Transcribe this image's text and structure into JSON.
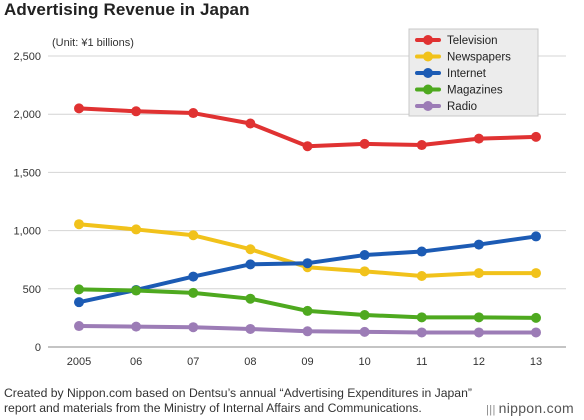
{
  "chart_data": {
    "type": "line",
    "title": "Advertising Revenue in Japan",
    "unit_note": "(Unit: ¥1 billions)",
    "x": [
      "2005",
      "06",
      "07",
      "08",
      "09",
      "10",
      "11",
      "12",
      "13"
    ],
    "ylim": [
      0,
      2500
    ],
    "yticks": [
      0,
      500,
      1000,
      1500,
      2000,
      2500
    ],
    "ytick_labels": [
      "0",
      "500",
      "1,000",
      "1,500",
      "2,000",
      "2,500"
    ],
    "grid": true,
    "legend_position": "top-right",
    "series": [
      {
        "name": "Television",
        "color": "#e03232",
        "values": [
          2050,
          2025,
          2010,
          1920,
          1725,
          1745,
          1735,
          1790,
          1805
        ]
      },
      {
        "name": "Newspapers",
        "color": "#f1c21b",
        "values": [
          1055,
          1010,
          960,
          840,
          685,
          650,
          610,
          635,
          635
        ]
      },
      {
        "name": "Internet",
        "color": "#1c5bb4",
        "values": [
          385,
          490,
          605,
          710,
          720,
          790,
          820,
          880,
          950
        ]
      },
      {
        "name": "Magazines",
        "color": "#4ea91f",
        "values": [
          495,
          485,
          465,
          415,
          310,
          275,
          255,
          255,
          250
        ]
      },
      {
        "name": "Radio",
        "color": "#9c7cb6",
        "values": [
          180,
          175,
          170,
          155,
          135,
          130,
          125,
          125,
          125
        ]
      }
    ]
  },
  "footer": {
    "caption": "Created by Nippon.com based on Dentsu’s annual “Advertising Expenditures in Japan” report and materials from the Ministry of Internal Affairs and Communications.",
    "brand": "nippon.com",
    "brand_mark": "|||"
  }
}
